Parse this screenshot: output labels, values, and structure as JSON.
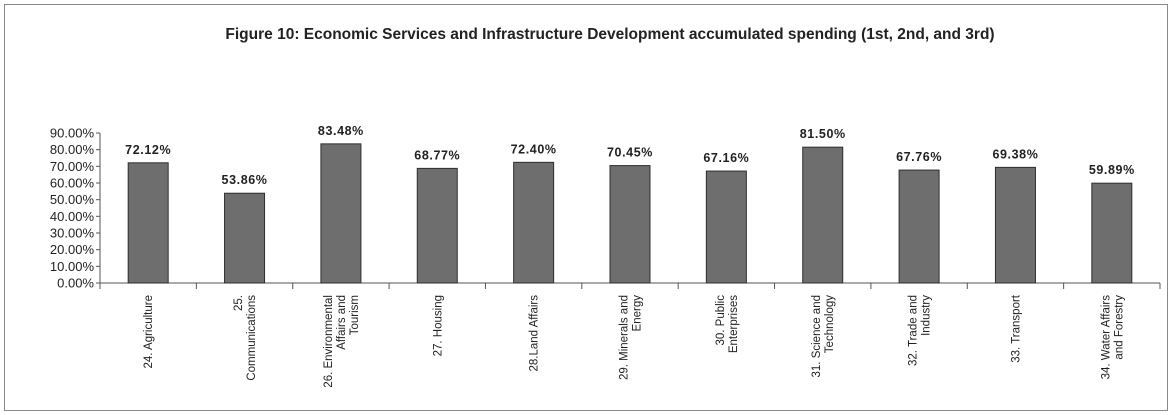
{
  "chart_data": {
    "type": "bar",
    "title": "Figure 10: Economic Services and Infrastructure Development accumulated spending (1st, 2nd, and 3rd)",
    "categories": [
      "24. Agriculture",
      "25. Communications",
      "26. Environmental Affairs and Tourism",
      "27. Housing",
      "28.Land Affairs",
      "29. Minerals and Energy",
      "30. Public Enterprises",
      "31. Science and Technology",
      "32. Trade and Industry",
      "33. Transport",
      "34. Water Affairs and Forestry"
    ],
    "category_lines": [
      [
        "24. Agriculture"
      ],
      [
        "25.",
        "Communications"
      ],
      [
        "26. Environmental",
        "Affairs and",
        "Tourism"
      ],
      [
        "27. Housing"
      ],
      [
        "28.Land Affairs"
      ],
      [
        "29. Minerals and",
        "Energy"
      ],
      [
        "30. Public",
        "Enterprises"
      ],
      [
        "31. Science and",
        "Technology"
      ],
      [
        "32. Trade and",
        "Industry"
      ],
      [
        "33. Transport"
      ],
      [
        "34. Water Affairs",
        "and Forestry"
      ]
    ],
    "values": [
      72.12,
      53.86,
      83.48,
      68.77,
      72.4,
      70.45,
      67.16,
      81.5,
      67.76,
      69.38,
      59.89
    ],
    "data_labels": [
      "72.12%",
      "53.86%",
      "83.48%",
      "68.77%",
      "72.40%",
      "70.45%",
      "67.16%",
      "81.50%",
      "67.76%",
      "69.38%",
      "59.89%"
    ],
    "ylim": [
      0,
      90
    ],
    "yticks": [
      "0.00%",
      "10.00%",
      "20.00%",
      "30.00%",
      "40.00%",
      "50.00%",
      "60.00%",
      "70.00%",
      "80.00%",
      "90.00%"
    ],
    "xlabel": "",
    "ylabel": "",
    "grid": false,
    "legend": "none",
    "colors": {
      "bar_fill": "#6e6e6e",
      "bar_stroke": "#2e2e2e",
      "axis": "#555555",
      "text": "#222222"
    }
  }
}
